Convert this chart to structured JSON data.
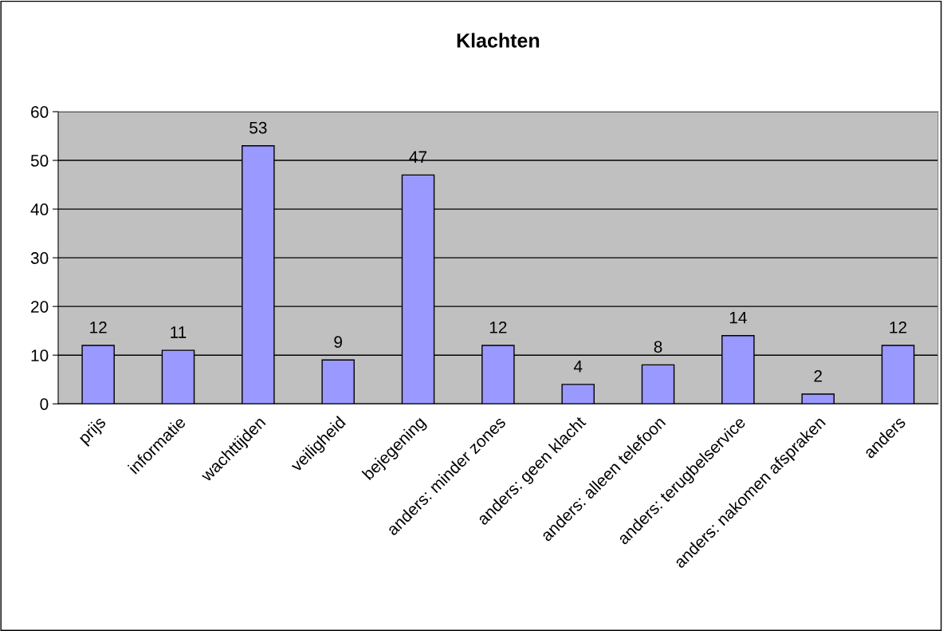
{
  "chart_data": {
    "type": "bar",
    "title": "Klachten",
    "categories": [
      "prijs",
      "informatie",
      "wachttijden",
      "veiligheid",
      "bejegening",
      "anders: minder zones",
      "anders: geen klacht",
      "anders: alleen telefoon",
      "anders: terugbelservice",
      "anders: nakomen afspraken",
      "anders"
    ],
    "values": [
      12,
      11,
      53,
      9,
      47,
      12,
      4,
      8,
      14,
      2,
      12
    ],
    "color": "#9999ff",
    "ylim": [
      0,
      60
    ],
    "yticks": [
      0,
      10,
      20,
      30,
      40,
      50,
      60
    ],
    "grid": "y",
    "data_labels": true,
    "legend": false
  }
}
